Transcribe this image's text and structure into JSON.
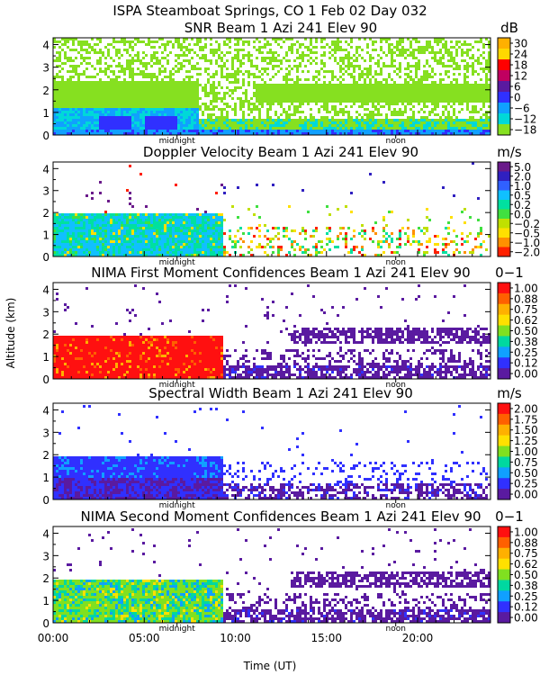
{
  "header": "ISPA Steamboat Springs, CO    1 Feb 02 Day 032",
  "ylabel": "Altitude (km)",
  "xlabel": "Time (UT)",
  "x_ticks": [
    "00:00",
    "05:00",
    "10:00",
    "15:00",
    "20:00"
  ],
  "x_tick_hours": [
    0,
    5,
    10,
    15,
    20
  ],
  "x_range_hours": [
    0,
    24
  ],
  "markers": [
    {
      "label": "midnight",
      "hour": 6.8
    },
    {
      "label": "noon",
      "hour": 18.8
    }
  ],
  "chart_data": [
    {
      "type": "heatmap",
      "title": "SNR Beam 1 Azi 241 Elev 90",
      "unit": "dB",
      "ylim": [
        0,
        4.3
      ],
      "y_ticks": [
        0,
        1,
        2,
        3,
        4
      ],
      "colorbar_labels": [
        "30",
        "24",
        "18",
        "12",
        "6",
        "0",
        "−6",
        "−12",
        "−18"
      ],
      "colorbar_colors": [
        "#ffb000",
        "#ffd800",
        "#ff0000",
        "#c00060",
        "#5a1aa0",
        "#3030ff",
        "#10a0ff",
        "#00d8d8",
        "#86e020"
      ]
    },
    {
      "type": "heatmap",
      "title": "Doppler Velocity Beam 1 Azi 241 Elev 90",
      "unit": "m/s",
      "ylim": [
        0,
        4.3
      ],
      "y_ticks": [
        0,
        1,
        2,
        3,
        4
      ],
      "colorbar_labels": [
        "5.0",
        "2.0",
        "1.0",
        "0.5",
        "0.2",
        "0.0",
        "−0.2",
        "−0.5",
        "−1.0",
        "−2.0"
      ],
      "colorbar_colors": [
        "#6a1a8a",
        "#3020c0",
        "#3060ff",
        "#10c0ff",
        "#00e0a0",
        "#40e040",
        "#c0e000",
        "#ffe000",
        "#ff9000",
        "#ff2000"
      ]
    },
    {
      "type": "heatmap",
      "title": "NIMA First Moment Confidences Beam 1 Azi 241 Elev 90",
      "unit": "0−1",
      "ylim": [
        0,
        4.3
      ],
      "y_ticks": [
        0,
        1,
        2,
        3,
        4
      ],
      "colorbar_labels": [
        "1.00",
        "0.88",
        "0.75",
        "0.62",
        "0.50",
        "0.38",
        "0.25",
        "0.12",
        "0.00"
      ],
      "colorbar_colors": [
        "#ff1010",
        "#ff6000",
        "#ffb000",
        "#ffe000",
        "#80e020",
        "#00d8a0",
        "#10a0ff",
        "#3030ff",
        "#5a1aa0"
      ]
    },
    {
      "type": "heatmap",
      "title": "Spectral Width Beam 1 Azi 241 Elev 90",
      "unit": "m/s",
      "ylim": [
        0,
        4.3
      ],
      "y_ticks": [
        0,
        1,
        2,
        3,
        4
      ],
      "colorbar_labels": [
        "2.00",
        "1.75",
        "1.50",
        "1.25",
        "1.00",
        "0.75",
        "0.50",
        "0.25",
        "0.00"
      ],
      "colorbar_colors": [
        "#ff1010",
        "#ff6000",
        "#ffb000",
        "#ffe000",
        "#80e020",
        "#00d8a0",
        "#10a0ff",
        "#3030ff",
        "#5a1aa0"
      ]
    },
    {
      "type": "heatmap",
      "title": "NIMA Second Moment Confidences Beam 1 Azi 241 Elev 90",
      "unit": "0−1",
      "ylim": [
        0,
        4.3
      ],
      "y_ticks": [
        0,
        1,
        2,
        3,
        4
      ],
      "colorbar_labels": [
        "1.00",
        "0.88",
        "0.75",
        "0.62",
        "0.50",
        "0.38",
        "0.25",
        "0.12",
        "0.00"
      ],
      "colorbar_colors": [
        "#ff1010",
        "#ff6000",
        "#ffb000",
        "#ffe000",
        "#80e020",
        "#00d8a0",
        "#10a0ff",
        "#3030ff",
        "#5a1aa0"
      ]
    }
  ]
}
